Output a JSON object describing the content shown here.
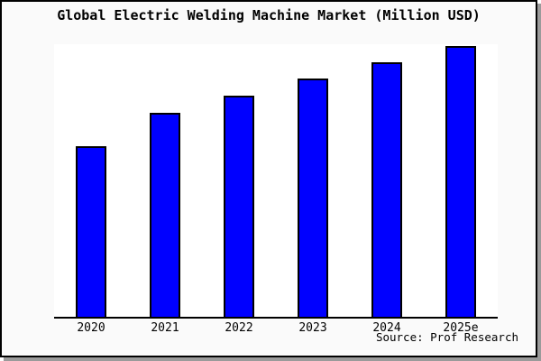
{
  "chart_data": {
    "type": "bar",
    "title": "Global Electric Welding Machine Market (Million USD)",
    "categories": [
      "2020",
      "2021",
      "2022",
      "2023",
      "2024",
      "2025e"
    ],
    "values": [
      63,
      75.3,
      81.7,
      88,
      94,
      100
    ],
    "value_unit": "relative index (no y-axis labels shown; 2025e bar = 100)",
    "xlabel": "",
    "ylabel": "",
    "ylim": [
      0,
      100.7
    ],
    "grid": false,
    "legend": false,
    "source": "Source: Prof Research",
    "colors": {
      "bar_fill": "#0000ff",
      "bar_border": "#000000",
      "plot_background": "#ffffff",
      "canvas_background": "#fafafa",
      "frame_border": "#000000",
      "frame_shadow": "#9a9a9a",
      "text": "#000000"
    }
  }
}
